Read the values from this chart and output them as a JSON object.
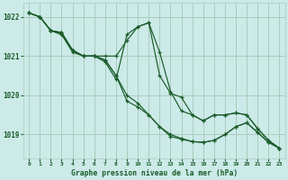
{
  "title": "Graphe pression niveau de la mer (hPa)",
  "bg_color": "#cceae8",
  "grid_color": "#aaccbb",
  "line_color": "#1a5c2a",
  "text_color": "#1a5c2a",
  "xlim": [
    -0.5,
    23.5
  ],
  "ylim": [
    1018.4,
    1022.35
  ],
  "yticks": [
    1019,
    1020,
    1021,
    1022
  ],
  "xticks": [
    0,
    1,
    2,
    3,
    4,
    5,
    6,
    7,
    8,
    9,
    10,
    11,
    12,
    13,
    14,
    15,
    16,
    17,
    18,
    19,
    20,
    21,
    22,
    23
  ],
  "series": [
    [
      1022.1,
      1022.0,
      1021.65,
      1021.6,
      1021.15,
      1021.0,
      1021.0,
      1021.0,
      1021.0,
      1021.4,
      1021.75,
      1021.85,
      1020.5,
      1020.05,
      1019.95,
      1019.5,
      1019.35,
      1019.5,
      1019.5,
      1019.55,
      1019.5,
      1019.15,
      1018.85,
      1018.65
    ],
    [
      1022.1,
      1022.0,
      1021.65,
      1021.6,
      1021.15,
      1021.0,
      1021.0,
      1020.9,
      1020.5,
      1020.0,
      1019.8,
      1019.5,
      1019.2,
      1019.0,
      1018.9,
      1018.82,
      1018.8,
      1018.85,
      1019.0,
      1019.2,
      1019.3,
      1019.05,
      1018.8,
      1018.65
    ],
    [
      1022.1,
      1022.0,
      1021.65,
      1021.55,
      1021.15,
      1021.0,
      1021.0,
      1020.9,
      1020.5,
      1019.85,
      1019.7,
      1019.5,
      1019.2,
      1018.95,
      1018.88,
      1018.82,
      1018.8,
      1018.85,
      1019.0,
      1019.2,
      1019.3,
      1019.05,
      1018.8,
      1018.65
    ],
    [
      1022.1,
      1022.0,
      1021.65,
      1021.55,
      1021.1,
      1021.0,
      1021.0,
      1020.85,
      1020.4,
      1021.55,
      1021.75,
      1021.85,
      1021.1,
      1020.1,
      1019.6,
      1019.5,
      1019.35,
      1019.5,
      1019.5,
      1019.55,
      1019.5,
      1019.15,
      1018.85,
      1018.65
    ]
  ]
}
